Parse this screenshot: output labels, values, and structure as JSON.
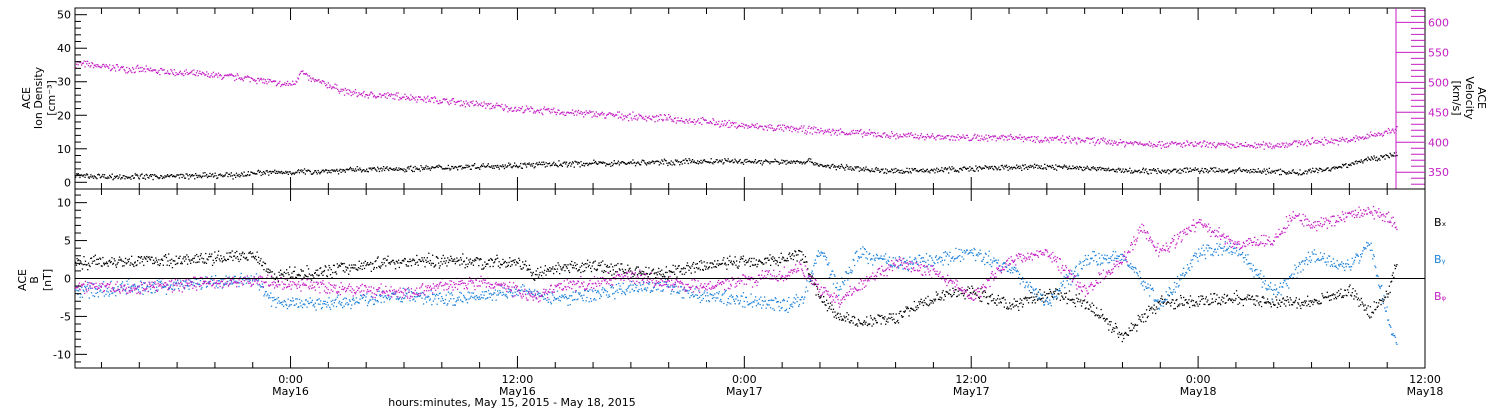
{
  "chart_data": [
    {
      "type": "scatter",
      "panel": "top",
      "ylabel_left": [
        "ACE",
        "Ion Density",
        "[cm⁻³]"
      ],
      "ylabel_right": [
        "ACE",
        "Velocity",
        "[km/s]"
      ],
      "x_tick_times": [
        "0:00",
        "12:00",
        "0:00",
        "12:00",
        "0:00",
        "12:00"
      ],
      "x_tick_dates": [
        "May16",
        "May16",
        "May17",
        "May17",
        "May18",
        "May18"
      ],
      "xlabel": "hours:minutes, May 15, 2015 - May 18, 2015",
      "x_range_hours_after_may15_0000": [
        12.6,
        84.0
      ],
      "left_axis": {
        "ylim": [
          -2,
          52
        ],
        "ticks": [
          0,
          10,
          20,
          30,
          40,
          50
        ],
        "color": "#000000"
      },
      "right_axis": {
        "ylim": [
          322,
          624
        ],
        "ticks": [
          350,
          400,
          450,
          500,
          550,
          600
        ],
        "color": "#c41fc4"
      },
      "grid": false,
      "series": [
        {
          "name": "",
          "axis": "left",
          "color": "#000000",
          "x_hours_after_may15_0000": [
            12.6,
            15,
            18,
            21,
            22,
            24,
            26,
            28,
            30,
            32,
            34,
            36,
            38,
            40,
            42,
            44,
            46,
            48,
            50,
            51.5,
            52,
            54,
            56,
            58,
            60,
            62,
            64,
            66,
            68,
            70,
            72,
            74,
            76,
            77.5,
            78,
            79,
            80,
            81,
            82.5
          ],
          "values": [
            2.2,
            1.8,
            2.0,
            2.2,
            3.0,
            3.2,
            3.6,
            4.0,
            4.2,
            4.6,
            5.0,
            5.2,
            5.6,
            5.8,
            6.0,
            6.2,
            6.4,
            6.4,
            6.2,
            6.4,
            5.2,
            4.2,
            3.4,
            3.8,
            4.2,
            4.6,
            4.8,
            4.4,
            3.6,
            3.6,
            3.8,
            3.6,
            3.4,
            3.0,
            3.6,
            4.2,
            5.6,
            7.0,
            8.6
          ]
        },
        {
          "name": "",
          "axis": "right",
          "color": "#c41fc4",
          "x_hours_after_may15_0000": [
            12.6,
            14,
            16,
            18,
            20,
            22,
            23.5,
            24.2,
            24.5,
            25,
            26,
            27,
            28,
            30,
            32,
            34,
            36,
            38,
            40,
            42,
            44,
            46,
            48,
            50,
            52,
            54,
            56,
            58,
            60,
            62,
            64,
            66,
            68,
            70,
            72,
            74,
            76,
            78,
            80,
            82.5
          ],
          "values": [
            533,
            527,
            522,
            517,
            512,
            507,
            497,
            499,
            520,
            506,
            496,
            484,
            480,
            477,
            470,
            464,
            456,
            452,
            448,
            444,
            440,
            435,
            428,
            424,
            420,
            416,
            412,
            410,
            408,
            410,
            406,
            404,
            400,
            398,
            397,
            395,
            396,
            402,
            404,
            422
          ]
        }
      ]
    },
    {
      "type": "scatter",
      "panel": "bottom",
      "ylabel": [
        "ACE",
        "B",
        "[nT]"
      ],
      "ylim": [
        -11.8,
        11.8
      ],
      "y_ticks": [
        -10,
        -5,
        0,
        5,
        10
      ],
      "zero_line": true,
      "grid": false,
      "legend_placement": "right",
      "series": [
        {
          "name": "Bₓ",
          "color": "#000000",
          "x_hours_after_may15_0000": [
            12.6,
            15,
            18,
            20,
            21,
            22,
            22.5,
            23,
            25,
            27,
            29,
            31,
            33,
            35,
            36,
            37,
            38,
            40,
            42,
            44,
            46,
            48,
            50,
            51,
            52,
            53,
            54,
            56,
            58,
            60,
            62,
            64,
            66,
            68,
            70,
            72,
            74,
            76,
            78,
            80,
            81,
            82,
            82.5
          ],
          "values": [
            2.2,
            2.4,
            2.5,
            2.7,
            3.0,
            3.3,
            2.2,
            0.5,
            0.8,
            1.5,
            2.2,
            2.4,
            2.4,
            2.2,
            2.2,
            0.6,
            1.2,
            1.8,
            1.0,
            0.8,
            1.8,
            2.4,
            2.6,
            3.4,
            -2.6,
            -4.8,
            -5.8,
            -5.0,
            -2.5,
            -1.5,
            -3.5,
            -2.0,
            -3.0,
            -7.5,
            -3.0,
            -3.0,
            -2.5,
            -3.0,
            -3.2,
            -1.5,
            -4.5,
            -2.0,
            2.3
          ]
        },
        {
          "name": "Bᵧ",
          "color": "#1e82d9",
          "x_hours_after_may15_0000": [
            12.6,
            15,
            18,
            20,
            22,
            23,
            25,
            27,
            29,
            31,
            33,
            35,
            36,
            38,
            40,
            42,
            44,
            46,
            48,
            50,
            51,
            52,
            53,
            54,
            56,
            58,
            60,
            62,
            64,
            66,
            68,
            70,
            72,
            74,
            76,
            78,
            80,
            81,
            82,
            82.5
          ],
          "values": [
            -1.6,
            -1.2,
            -0.8,
            -0.4,
            0.2,
            -3.0,
            -3.2,
            -3.0,
            -2.2,
            -2.4,
            -2.6,
            -1.8,
            -1.4,
            -2.6,
            -2.0,
            -1.2,
            -1.0,
            -2.2,
            -2.8,
            -3.5,
            -3.0,
            4.0,
            -1.5,
            3.5,
            2.0,
            2.5,
            3.5,
            1.5,
            -3.0,
            2.5,
            3.0,
            -3.5,
            3.5,
            4.0,
            -2.0,
            3.0,
            1.5,
            5.0,
            -5.0,
            -9.2
          ]
        },
        {
          "name": "Bᵩ",
          "color": "#c41fc4",
          "x_hours_after_may15_0000": [
            12.6,
            15,
            18,
            20,
            22,
            24,
            26,
            28,
            30,
            32,
            34,
            35,
            37,
            38,
            40,
            42,
            44,
            46,
            48,
            50,
            51,
            52,
            53,
            54,
            56,
            58,
            60,
            62,
            64,
            66,
            68,
            69,
            70,
            72,
            74,
            76,
            77,
            78,
            80,
            81,
            82,
            82.5
          ],
          "values": [
            -1.0,
            -1.2,
            -0.8,
            -0.4,
            -0.2,
            -0.5,
            -1.0,
            -1.5,
            -2.0,
            -0.8,
            -0.5,
            -0.8,
            -2.5,
            -1.0,
            -0.5,
            0.5,
            -0.5,
            -1.0,
            -0.2,
            0.5,
            1.6,
            -1.5,
            -3.0,
            -1.0,
            2.0,
            1.0,
            -2.5,
            2.5,
            3.5,
            -1.5,
            2.5,
            6.5,
            3.5,
            7.5,
            4.5,
            5.0,
            8.5,
            7.0,
            8.5,
            9.2,
            8.0,
            6.8
          ]
        }
      ]
    }
  ],
  "colors": {
    "axes": "#000000",
    "velocity": "#c41fc4",
    "bx": "#000000",
    "by": "#1e82d9",
    "bz": "#c41fc4"
  }
}
